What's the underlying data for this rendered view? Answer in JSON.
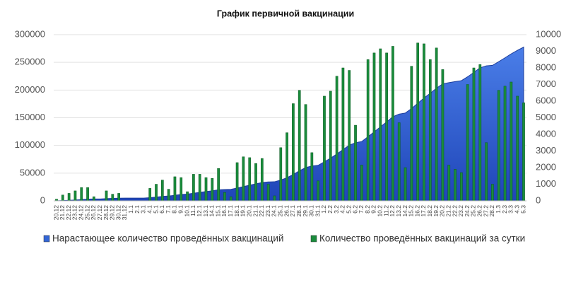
{
  "chart_data": {
    "type": "combo",
    "title": "График первичной вакцинации",
    "categories": [
      "20.12",
      "21.12",
      "22.12",
      "23.12",
      "24.12",
      "25.12",
      "26.12",
      "27.12",
      "28.12",
      "29.12",
      "30.12",
      "31.12",
      "1.1",
      "2.1",
      "3.1",
      "4.1",
      "5.1",
      "6.1",
      "7.1",
      "8.1",
      "9.1",
      "10.1",
      "11.1",
      "12.1",
      "13.1",
      "14.1",
      "15.1",
      "16.1",
      "17.1",
      "18.1",
      "19.1",
      "20.1",
      "21.1",
      "22.1",
      "23.1",
      "24.1",
      "25.1",
      "26.1",
      "27.1",
      "28.1",
      "29.1",
      "30.1",
      "31.1",
      "1.2",
      "2.2",
      "3.2",
      "4.2",
      "5.2",
      "6.2",
      "7.2",
      "8.2",
      "9.2",
      "10.2",
      "11.2",
      "12.2",
      "13.2",
      "14.2",
      "15.2",
      "16.2",
      "17.2",
      "18.2",
      "19.2",
      "20.2",
      "21.2",
      "22.2",
      "23.2",
      "24.2",
      "25.2",
      "26.2",
      "27.2",
      "28.2",
      "1.3",
      "2.3",
      "3.3",
      "4.3",
      "5.3"
    ],
    "series": [
      {
        "name": "Нарастающее количество проведённых вакцинаций",
        "type": "area",
        "axis": "y",
        "color": "#3366d6",
        "values": [
          100,
          450,
          900,
          1500,
          2300,
          3100,
          3350,
          3400,
          4000,
          4400,
          4850,
          5000,
          5000,
          5000,
          5000,
          5700,
          6700,
          8000,
          8700,
          10100,
          11500,
          12100,
          13700,
          15300,
          16700,
          18000,
          20000,
          20500,
          20800,
          23100,
          25700,
          28300,
          30600,
          33100,
          34100,
          34400,
          37600,
          41700,
          47600,
          54200,
          60000,
          62900,
          64100,
          70400,
          77000,
          84500,
          92500,
          100400,
          104900,
          107100,
          115600,
          124500,
          133600,
          142500,
          151800,
          156500,
          158500,
          166600,
          176100,
          185600,
          194100,
          203300,
          211200,
          213300,
          215200,
          216900,
          223900,
          231900,
          240100,
          243600,
          244600,
          251300,
          258200,
          265300,
          271600,
          277500
        ]
      },
      {
        "name": "Количество проведённых вакцинаций за сутки",
        "type": "bar",
        "axis": "y2",
        "color": "#1a8c3c",
        "values": [
          100,
          350,
          450,
          600,
          800,
          800,
          250,
          0,
          600,
          400,
          450,
          0,
          0,
          0,
          0,
          750,
          1000,
          1250,
          700,
          1450,
          1400,
          550,
          1600,
          1600,
          1400,
          1350,
          1950,
          500,
          250,
          2300,
          2650,
          2600,
          2250,
          2550,
          1000,
          300,
          3200,
          4100,
          5850,
          6650,
          5800,
          2900,
          1200,
          6300,
          6600,
          7500,
          8000,
          7850,
          4550,
          2150,
          8500,
          8900,
          9150,
          8900,
          9300,
          4700,
          2000,
          8100,
          9500,
          9450,
          8500,
          9200,
          7900,
          2150,
          1900,
          1700,
          7000,
          8000,
          8200,
          3500,
          1000,
          6650,
          6900,
          7150,
          6300,
          5900
        ]
      }
    ],
    "ylim": [
      0,
      300000
    ],
    "yticks": [
      0,
      50000,
      100000,
      150000,
      200000,
      250000,
      300000
    ],
    "y2lim": [
      0,
      10000
    ],
    "y2ticks": [
      0,
      1000,
      2000,
      3000,
      4000,
      5000,
      6000,
      7000,
      8000,
      9000,
      10000
    ],
    "grid": true,
    "legend": "bottom"
  }
}
